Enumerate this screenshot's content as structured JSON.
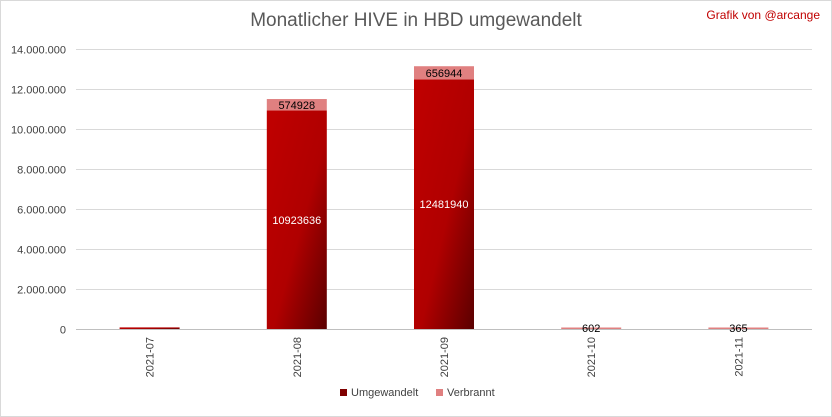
{
  "chart_data": {
    "type": "bar",
    "stacked": true,
    "title": "Monatlicher HIVE in HBD umgewandelt",
    "credit": "Grafik von @arcange",
    "categories": [
      "2021-07",
      "2021-08",
      "2021-09",
      "2021-10",
      "2021-11"
    ],
    "series": [
      {
        "name": "Umgewandelt",
        "values": [
          80000,
          10923636,
          12481940,
          0,
          0
        ],
        "labels": [
          "",
          "10923636",
          "12481940",
          "",
          ""
        ],
        "color": "#c00000"
      },
      {
        "name": "Verbrannt",
        "values": [
          0,
          574928,
          656944,
          602,
          365
        ],
        "labels": [
          "",
          "574928",
          "656944",
          "602",
          "365"
        ],
        "color": "#e08080"
      }
    ],
    "ylim": [
      0,
      14000000
    ],
    "yticks": [
      0,
      2000000,
      4000000,
      6000000,
      8000000,
      10000000,
      12000000,
      14000000
    ],
    "ytick_labels": [
      "0",
      "2.000.000",
      "4.000.000",
      "6.000.000",
      "8.000.000",
      "10.000.000",
      "12.000.000",
      "14.000.000"
    ],
    "grid": true,
    "legend": "bottom"
  }
}
